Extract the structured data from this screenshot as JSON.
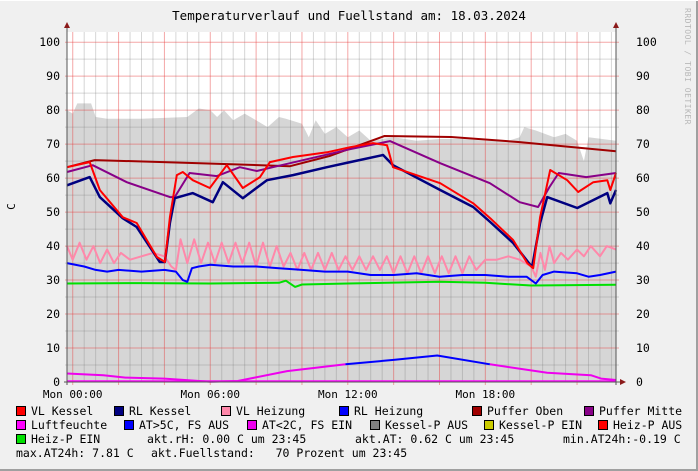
{
  "chart_data": {
    "type": "line",
    "title": "Temperaturverlauf und Fuellstand am: 18.03.2024",
    "ylabel": "C",
    "watermark": "RRDTOOL / TOBI OETIKER",
    "xlim_hours": [
      -0.25,
      23.7
    ],
    "ylim": [
      0,
      103
    ],
    "yticks": [
      0,
      10,
      20,
      30,
      40,
      50,
      60,
      70,
      80,
      90,
      100
    ],
    "xticks": [
      {
        "hour": 0,
        "label": "Mon 00:00"
      },
      {
        "hour": 6,
        "label": "Mon 06:00"
      },
      {
        "hour": 12,
        "label": "Mon 12:00"
      },
      {
        "hour": 18,
        "label": "Mon 18:00"
      }
    ],
    "grid": true,
    "legend_placement": "bottom",
    "area": {
      "color": "#d6d6d6",
      "points": [
        [
          -0.25,
          80
        ],
        [
          0,
          79
        ],
        [
          0.2,
          82
        ],
        [
          0.8,
          82
        ],
        [
          1,
          78
        ],
        [
          1.5,
          77.5
        ],
        [
          3,
          77.5
        ],
        [
          5,
          78
        ],
        [
          5.5,
          80.5
        ],
        [
          6,
          80
        ],
        [
          6.3,
          78
        ],
        [
          6.6,
          80
        ],
        [
          7,
          77
        ],
        [
          7.5,
          79
        ],
        [
          8,
          77
        ],
        [
          8.5,
          75
        ],
        [
          9,
          78
        ],
        [
          9.3,
          77.5
        ],
        [
          10,
          76
        ],
        [
          10.3,
          72
        ],
        [
          10.6,
          77
        ],
        [
          11,
          73
        ],
        [
          11.5,
          75
        ],
        [
          12,
          72
        ],
        [
          12.5,
          74
        ],
        [
          13,
          71
        ],
        [
          14,
          72
        ],
        [
          14.5,
          71.5
        ],
        [
          15,
          71
        ],
        [
          16,
          71.5
        ],
        [
          17,
          71.5
        ],
        [
          18,
          71
        ],
        [
          19,
          71
        ],
        [
          19.5,
          72
        ],
        [
          19.7,
          75
        ],
        [
          20.2,
          74
        ],
        [
          21,
          72
        ],
        [
          21.5,
          73
        ],
        [
          22,
          71
        ],
        [
          22.3,
          65
        ],
        [
          22.5,
          72
        ],
        [
          23.7,
          71
        ]
      ]
    },
    "series": [
      {
        "name": "Heiz-P EIN",
        "color": "#00e000",
        "width": 2,
        "points": [
          [
            -0.25,
            29
          ],
          [
            3,
            29.1
          ],
          [
            6,
            29
          ],
          [
            9,
            29.2
          ],
          [
            9.3,
            29.8
          ],
          [
            9.7,
            28
          ],
          [
            10,
            28.7
          ],
          [
            12,
            29
          ],
          [
            16,
            29.5
          ],
          [
            18,
            29.2
          ],
          [
            20,
            28.4
          ],
          [
            23.7,
            28.6
          ]
        ]
      },
      {
        "name": "VL Heizung",
        "color": "#ff88aa",
        "width": 2,
        "points": [
          [
            -0.25,
            40
          ],
          [
            0,
            36
          ],
          [
            0.3,
            41
          ],
          [
            0.6,
            36
          ],
          [
            0.9,
            40
          ],
          [
            1.2,
            35
          ],
          [
            1.5,
            39
          ],
          [
            1.8,
            35
          ],
          [
            2.1,
            38
          ],
          [
            2.5,
            36
          ],
          [
            3,
            37
          ],
          [
            3.5,
            38
          ],
          [
            4,
            37
          ],
          [
            4.3,
            34
          ],
          [
            4.5,
            33
          ],
          [
            4.7,
            42
          ],
          [
            5,
            35
          ],
          [
            5.3,
            42
          ],
          [
            5.6,
            35
          ],
          [
            5.9,
            41
          ],
          [
            6.2,
            35
          ],
          [
            6.5,
            41
          ],
          [
            6.8,
            35
          ],
          [
            7.1,
            41
          ],
          [
            7.4,
            35
          ],
          [
            7.7,
            41
          ],
          [
            8,
            34
          ],
          [
            8.3,
            41
          ],
          [
            8.6,
            34
          ],
          [
            8.9,
            40
          ],
          [
            9.2,
            34
          ],
          [
            9.5,
            38
          ],
          [
            9.8,
            33
          ],
          [
            10.1,
            38
          ],
          [
            10.4,
            33
          ],
          [
            10.7,
            38
          ],
          [
            11,
            33
          ],
          [
            11.3,
            38
          ],
          [
            11.6,
            33
          ],
          [
            11.9,
            37
          ],
          [
            12.2,
            33
          ],
          [
            12.5,
            37
          ],
          [
            12.8,
            33
          ],
          [
            13.1,
            37
          ],
          [
            13.4,
            33
          ],
          [
            13.7,
            37
          ],
          [
            14,
            32
          ],
          [
            14.3,
            37
          ],
          [
            14.6,
            32
          ],
          [
            14.9,
            37
          ],
          [
            15.2,
            32
          ],
          [
            15.5,
            37
          ],
          [
            15.8,
            32
          ],
          [
            16.1,
            37
          ],
          [
            16.4,
            32
          ],
          [
            16.7,
            37
          ],
          [
            17,
            32
          ],
          [
            17.3,
            37
          ],
          [
            17.6,
            33
          ],
          [
            18,
            36
          ],
          [
            18.5,
            36
          ],
          [
            19,
            37
          ],
          [
            19.5,
            36
          ],
          [
            20,
            34
          ],
          [
            20.2,
            31
          ],
          [
            20.4,
            38
          ],
          [
            20.6,
            33
          ],
          [
            20.8,
            40
          ],
          [
            21,
            35
          ],
          [
            21.3,
            38
          ],
          [
            21.6,
            36
          ],
          [
            22,
            39
          ],
          [
            22.3,
            37
          ],
          [
            22.6,
            40
          ],
          [
            23,
            37
          ],
          [
            23.3,
            40
          ],
          [
            23.7,
            39
          ]
        ]
      },
      {
        "name": "RL Heizung",
        "color": "#0000ff",
        "width": 2,
        "points": [
          [
            -0.25,
            35
          ],
          [
            0.5,
            34
          ],
          [
            1,
            33
          ],
          [
            1.5,
            32.5
          ],
          [
            2,
            33
          ],
          [
            3,
            32.5
          ],
          [
            4,
            33
          ],
          [
            4.5,
            32.5
          ],
          [
            4.8,
            30
          ],
          [
            5,
            29.5
          ],
          [
            5.2,
            33.5
          ],
          [
            5.5,
            34
          ],
          [
            6,
            34.5
          ],
          [
            7,
            34
          ],
          [
            8,
            34
          ],
          [
            9,
            33.5
          ],
          [
            10,
            33
          ],
          [
            11,
            32.5
          ],
          [
            12,
            32.5
          ],
          [
            13,
            31.5
          ],
          [
            14,
            31.5
          ],
          [
            15,
            32
          ],
          [
            16,
            31
          ],
          [
            17,
            31.5
          ],
          [
            18,
            31.5
          ],
          [
            19,
            31
          ],
          [
            19.8,
            31
          ],
          [
            20.2,
            29
          ],
          [
            20.5,
            31.5
          ],
          [
            21,
            32.5
          ],
          [
            22,
            32
          ],
          [
            22.5,
            31
          ],
          [
            23,
            31.5
          ],
          [
            23.7,
            32.5
          ]
        ]
      },
      {
        "name": "Puffer Oben",
        "color": "#a00000",
        "width": 2,
        "points": [
          [
            -0.25,
            63.2
          ],
          [
            0.96,
            65.3
          ],
          [
            5.55,
            64.4
          ],
          [
            9.48,
            63.5
          ],
          [
            11.2,
            66.5
          ],
          [
            13.6,
            72.4
          ],
          [
            16.5,
            72.1
          ],
          [
            19.5,
            70.6
          ],
          [
            23.7,
            67.9
          ]
        ]
      },
      {
        "name": "Puffer Mitte",
        "color": "#880088",
        "width": 2,
        "points": [
          [
            -0.25,
            61.8
          ],
          [
            0.87,
            63.8
          ],
          [
            2.36,
            58.8
          ],
          [
            4.24,
            54.4
          ],
          [
            4.45,
            54.4
          ],
          [
            5.1,
            61.5
          ],
          [
            6.29,
            60.6
          ],
          [
            7.29,
            63.2
          ],
          [
            8.03,
            62.1
          ],
          [
            8.73,
            63.2
          ],
          [
            12.1,
            68.5
          ],
          [
            13.84,
            70.9
          ],
          [
            16.03,
            64.4
          ],
          [
            18.2,
            58.5
          ],
          [
            19.5,
            52.9
          ],
          [
            20.3,
            51.5
          ],
          [
            20.8,
            57.4
          ],
          [
            21.2,
            61.5
          ],
          [
            22.4,
            60.3
          ],
          [
            23.7,
            61.5
          ]
        ]
      },
      {
        "name": "RL Kessel",
        "color": "#000080",
        "width": 2.5,
        "points": [
          [
            -0.25,
            57.9
          ],
          [
            0.74,
            60.3
          ],
          [
            1.18,
            54.4
          ],
          [
            2.18,
            48.2
          ],
          [
            2.79,
            45.6
          ],
          [
            3.8,
            35.3
          ],
          [
            4.02,
            35.3
          ],
          [
            4.24,
            46.8
          ],
          [
            4.45,
            54.1
          ],
          [
            5.24,
            55.6
          ],
          [
            6.11,
            52.9
          ],
          [
            6.55,
            58.8
          ],
          [
            7.42,
            54.1
          ],
          [
            8.47,
            59.4
          ],
          [
            9.61,
            60.9
          ],
          [
            11.09,
            63.2
          ],
          [
            12.1,
            64.7
          ],
          [
            13.54,
            66.8
          ],
          [
            13.97,
            63.8
          ],
          [
            16.03,
            56.5
          ],
          [
            17.47,
            51.5
          ],
          [
            18.21,
            47.1
          ],
          [
            19.21,
            40.9
          ],
          [
            20.04,
            33.8
          ],
          [
            20.39,
            46.8
          ],
          [
            20.7,
            54.4
          ],
          [
            22.01,
            51.2
          ],
          [
            23.32,
            55.6
          ],
          [
            23.45,
            52.6
          ],
          [
            23.7,
            56.5
          ]
        ]
      },
      {
        "name": "VL Kessel",
        "color": "#ff0000",
        "width": 2,
        "points": [
          [
            -0.25,
            63.2
          ],
          [
            0.74,
            64.7
          ],
          [
            1.18,
            56.5
          ],
          [
            2.18,
            48.5
          ],
          [
            2.79,
            46.8
          ],
          [
            3.67,
            36.8
          ],
          [
            4.02,
            35.3
          ],
          [
            4.24,
            48.5
          ],
          [
            4.54,
            60.9
          ],
          [
            4.8,
            61.8
          ],
          [
            5.24,
            59.4
          ],
          [
            5.98,
            57.1
          ],
          [
            6.72,
            63.8
          ],
          [
            7.42,
            57.1
          ],
          [
            8.17,
            60.3
          ],
          [
            8.6,
            64.7
          ],
          [
            9.61,
            66.2
          ],
          [
            11.09,
            67.6
          ],
          [
            12.1,
            69.1
          ],
          [
            13.1,
            70.3
          ],
          [
            13.71,
            69.7
          ],
          [
            13.97,
            63.2
          ],
          [
            16.03,
            58.5
          ],
          [
            17.47,
            52.6
          ],
          [
            18.21,
            48.2
          ],
          [
            19.21,
            41.8
          ],
          [
            19.83,
            35
          ],
          [
            20.09,
            33.5
          ],
          [
            20.39,
            48.5
          ],
          [
            20.83,
            62.4
          ],
          [
            21.57,
            59.4
          ],
          [
            22.05,
            55.9
          ],
          [
            22.71,
            58.8
          ],
          [
            23.32,
            59.4
          ],
          [
            23.45,
            56.5
          ],
          [
            23.7,
            61.5
          ]
        ]
      },
      {
        "name": "Luftfeuchte",
        "color": "#ff00ff",
        "width": 2,
        "points": [
          [
            -0.25,
            0.2
          ],
          [
            23.7,
            0.2
          ]
        ]
      },
      {
        "name": "AT<2C, FS EIN",
        "color": "#ee00ee",
        "width": 2,
        "points": [
          [
            -0.25,
            2.5
          ],
          [
            1.34,
            2.0
          ],
          [
            2.3,
            1.3
          ],
          [
            4,
            1.0
          ],
          [
            6,
            0.1
          ],
          [
            7.2,
            0.3
          ],
          [
            9.35,
            3.2
          ],
          [
            11.9,
            5.2
          ]
        ]
      },
      {
        "name": "AT>5C, FS AUS",
        "color": "#0000ff",
        "width": 2,
        "points": [
          [
            11.9,
            5.2
          ],
          [
            14,
            6.5
          ],
          [
            15.9,
            7.8
          ],
          [
            18.2,
            5.2
          ]
        ]
      },
      {
        "name": "AT<2C, FS EIN",
        "color": "#ee00ee",
        "width": 2,
        "points": [
          [
            18.2,
            5.2
          ],
          [
            20.7,
            2.7
          ],
          [
            22.6,
            2.0
          ],
          [
            23.05,
            1.0
          ],
          [
            23.7,
            0.6
          ]
        ]
      }
    ]
  },
  "legend": {
    "items": [
      {
        "label": "VL Kessel",
        "color": "#ff0000"
      },
      {
        "label": "RL Kessel",
        "color": "#000080"
      },
      {
        "label": "VL Heizung",
        "color": "#ff88aa"
      },
      {
        "label": "RL Heizung",
        "color": "#0000ff"
      },
      {
        "label": "Puffer Oben",
        "color": "#a00000"
      },
      {
        "label": "Puffer Mitte",
        "color": "#880088"
      },
      {
        "label": "Luftfeuchte",
        "color": "#ff00ff"
      },
      {
        "label": "AT>5C, FS AUS",
        "color": "#0000ff"
      },
      {
        "label": "AT<2C, FS EIN",
        "color": "#ee00ee"
      },
      {
        "label": "Kessel-P AUS",
        "color": "#808080"
      },
      {
        "label": "Kessel-P EIN",
        "color": "#cccc00"
      },
      {
        "label": "Heiz-P AUS",
        "color": "#ff0000"
      },
      {
        "label": "Heiz-P EIN",
        "color": "#00e000"
      }
    ],
    "stats": {
      "akt_rh": "akt.rH: 0.00 C um 23:45",
      "akt_at": "akt.AT: 0.62 C um 23:45",
      "min_at": "min.AT24h:-0.19 C",
      "max_at": "max.AT24h: 7.81 C",
      "fuellstand": "akt.Fuellstand:   70 Prozent um 23:45"
    }
  }
}
